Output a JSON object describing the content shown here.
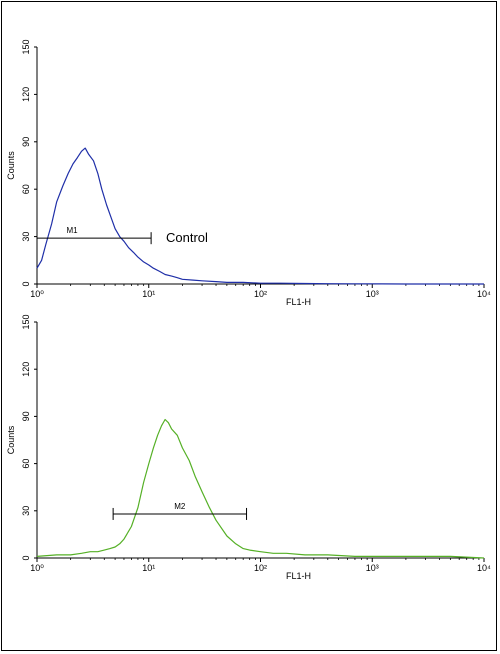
{
  "chart_data": [
    {
      "type": "line",
      "title": "",
      "xlabel": "FL1-H",
      "ylabel": "Counts",
      "x_scale": "log",
      "xlim": [
        1,
        10000
      ],
      "ylim": [
        0,
        150
      ],
      "x_tick_labels": [
        "10⁰",
        "10¹",
        "10²",
        "10³",
        "10⁴"
      ],
      "x_tick_values": [
        1,
        10,
        100,
        1000,
        10000
      ],
      "y_ticks": [
        0,
        30,
        60,
        90,
        120,
        150
      ],
      "grid": false,
      "color": "#1f2fa8",
      "series": [
        {
          "name": "Control",
          "x": [
            1.0,
            1.1,
            1.2,
            1.35,
            1.5,
            1.7,
            1.9,
            2.1,
            2.3,
            2.5,
            2.7,
            2.9,
            3.2,
            3.5,
            3.8,
            4.2,
            4.6,
            5.0,
            5.5,
            6.0,
            6.6,
            7.3,
            8.0,
            9.0,
            10.0,
            11.0,
            12.5,
            14.0,
            16.0,
            18.0,
            20.0,
            25.0,
            30.0,
            40.0,
            50.0,
            70.0,
            100.0,
            150.0,
            250.0,
            400.0,
            700.0,
            1000.0,
            2000.0,
            5000.0,
            10000.0
          ],
          "y": [
            10,
            15,
            25,
            38,
            52,
            62,
            70,
            76,
            80,
            84,
            86,
            82,
            78,
            70,
            60,
            50,
            42,
            35,
            30,
            27,
            23,
            20,
            17,
            14,
            12,
            10,
            8,
            6,
            5,
            4,
            3,
            2.5,
            2,
            1.5,
            1,
            1,
            0.5,
            0.5,
            0.3,
            0.2,
            0.1,
            0.1,
            0,
            0,
            0
          ]
        }
      ],
      "markers": [
        {
          "label": "M1",
          "start": 1.0,
          "end": 10.5,
          "y": 29
        }
      ],
      "annotations": [
        "Control"
      ]
    },
    {
      "type": "line",
      "title": "",
      "xlabel": "FL1-H",
      "ylabel": "Counts",
      "x_scale": "log",
      "xlim": [
        1,
        10000
      ],
      "ylim": [
        0,
        150
      ],
      "x_tick_labels": [
        "10⁰",
        "10¹",
        "10²",
        "10³",
        "10⁴"
      ],
      "x_tick_values": [
        1,
        10,
        100,
        1000,
        10000
      ],
      "y_ticks": [
        0,
        30,
        60,
        90,
        120,
        150
      ],
      "grid": false,
      "color": "#55b026",
      "series": [
        {
          "name": "",
          "x": [
            1.0,
            1.5,
            2.0,
            2.5,
            3.0,
            3.5,
            4.0,
            4.5,
            5.0,
            5.5,
            6.0,
            7.0,
            8.0,
            9.0,
            10.0,
            11.0,
            12.0,
            13.0,
            14.0,
            15.0,
            16.0,
            18.0,
            20.0,
            23.0,
            26.0,
            30.0,
            35.0,
            40.0,
            50.0,
            60.0,
            70.0,
            80.0,
            100.0,
            130.0,
            170.0,
            250.0,
            400.0,
            700.0,
            1000.0,
            2000.0,
            5000.0,
            10000.0
          ],
          "y": [
            1,
            2,
            2,
            3,
            4,
            4,
            5,
            6,
            7,
            9,
            12,
            20,
            32,
            48,
            60,
            70,
            78,
            84,
            88,
            86,
            82,
            78,
            70,
            62,
            52,
            42,
            32,
            24,
            14,
            9,
            6,
            5,
            4,
            3,
            3,
            2,
            2,
            1,
            1,
            1,
            1,
            0
          ]
        }
      ],
      "markers": [
        {
          "label": "M2",
          "start": 4.8,
          "end": 75,
          "y": 28
        }
      ]
    }
  ]
}
